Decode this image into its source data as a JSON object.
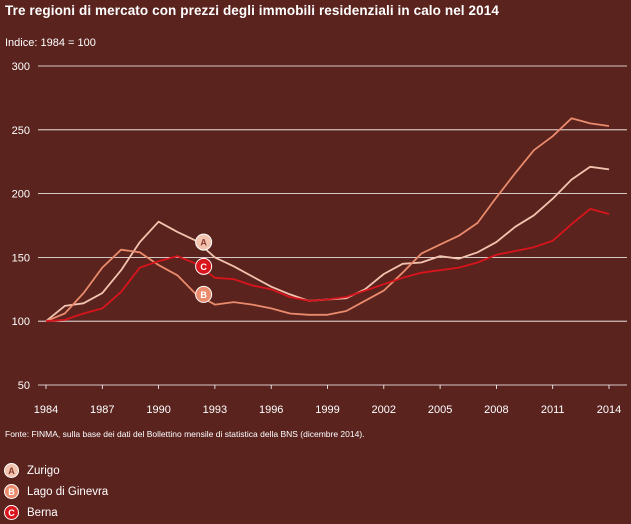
{
  "chart_data": {
    "type": "line",
    "title": "Tre regioni di mercato con prezzi degli immobili residenziali in calo nel 2014",
    "unit_label": "Indice: 1984 = 100",
    "source": "Fonte: FINMA, sulla base dei dati del Bollettino mensile di statistica della BNS (dicembre 2014).",
    "xlabel": "",
    "ylabel": "",
    "ylim": [
      50,
      300
    ],
    "xlim": [
      1984,
      2014
    ],
    "yticks": [
      50,
      100,
      150,
      200,
      250,
      300
    ],
    "xticks": [
      1984,
      1987,
      1990,
      1993,
      1996,
      1999,
      2002,
      2005,
      2008,
      2011,
      2014
    ],
    "grid": "horizontal",
    "legend_position": "bottom-left",
    "series": [
      {
        "id": "A",
        "name": "Zurigo",
        "color": "#f2c4b0",
        "x": [
          1984,
          1985,
          1986,
          1987,
          1988,
          1989,
          1990,
          1991,
          1992,
          1993,
          1994,
          1995,
          1996,
          1997,
          1998,
          1999,
          2000,
          2001,
          2002,
          2003,
          2004,
          2005,
          2006,
          2007,
          2008,
          2009,
          2010,
          2011,
          2012,
          2013,
          2014
        ],
        "values": [
          100,
          112,
          114,
          122,
          140,
          162,
          178,
          170,
          163,
          150,
          143,
          135,
          127,
          121,
          116,
          117,
          118,
          125,
          137,
          145,
          146,
          151,
          149,
          154,
          162,
          174,
          183,
          196,
          211,
          221,
          219
        ]
      },
      {
        "id": "B",
        "name": "Lago di Ginevra",
        "color": "#e98b6c",
        "x": [
          1984,
          1985,
          1986,
          1987,
          1988,
          1989,
          1990,
          1991,
          1992,
          1993,
          1994,
          1995,
          1996,
          1997,
          1998,
          1999,
          2000,
          2001,
          2002,
          2003,
          2004,
          2005,
          2006,
          2007,
          2008,
          2009,
          2010,
          2011,
          2012,
          2013,
          2014
        ],
        "values": [
          100,
          106,
          122,
          142,
          156,
          154,
          144,
          136,
          121,
          113,
          115,
          113,
          110,
          106,
          105,
          105,
          108,
          116,
          124,
          138,
          153,
          160,
          167,
          177,
          197,
          216,
          234,
          245,
          259,
          255,
          253
        ]
      },
      {
        "id": "C",
        "name": "Berna",
        "color": "#d8141c",
        "x": [
          1984,
          1985,
          1986,
          1987,
          1988,
          1989,
          1990,
          1991,
          1992,
          1993,
          1994,
          1995,
          1996,
          1997,
          1998,
          1999,
          2000,
          2001,
          2002,
          2003,
          2004,
          2005,
          2006,
          2007,
          2008,
          2009,
          2010,
          2011,
          2012,
          2013,
          2014
        ],
        "values": [
          100,
          101,
          106,
          110,
          123,
          142,
          147,
          151,
          145,
          134,
          133,
          128,
          125,
          119,
          116,
          117,
          119,
          124,
          129,
          134,
          138,
          140,
          142,
          146,
          152,
          155,
          158,
          163,
          176,
          188,
          184
        ]
      }
    ],
    "annotations": [
      {
        "series": "A",
        "x": 1992.4,
        "y": 162
      },
      {
        "series": "C",
        "x": 1992.4,
        "y": 143
      },
      {
        "series": "B",
        "x": 1992.4,
        "y": 121
      }
    ]
  }
}
